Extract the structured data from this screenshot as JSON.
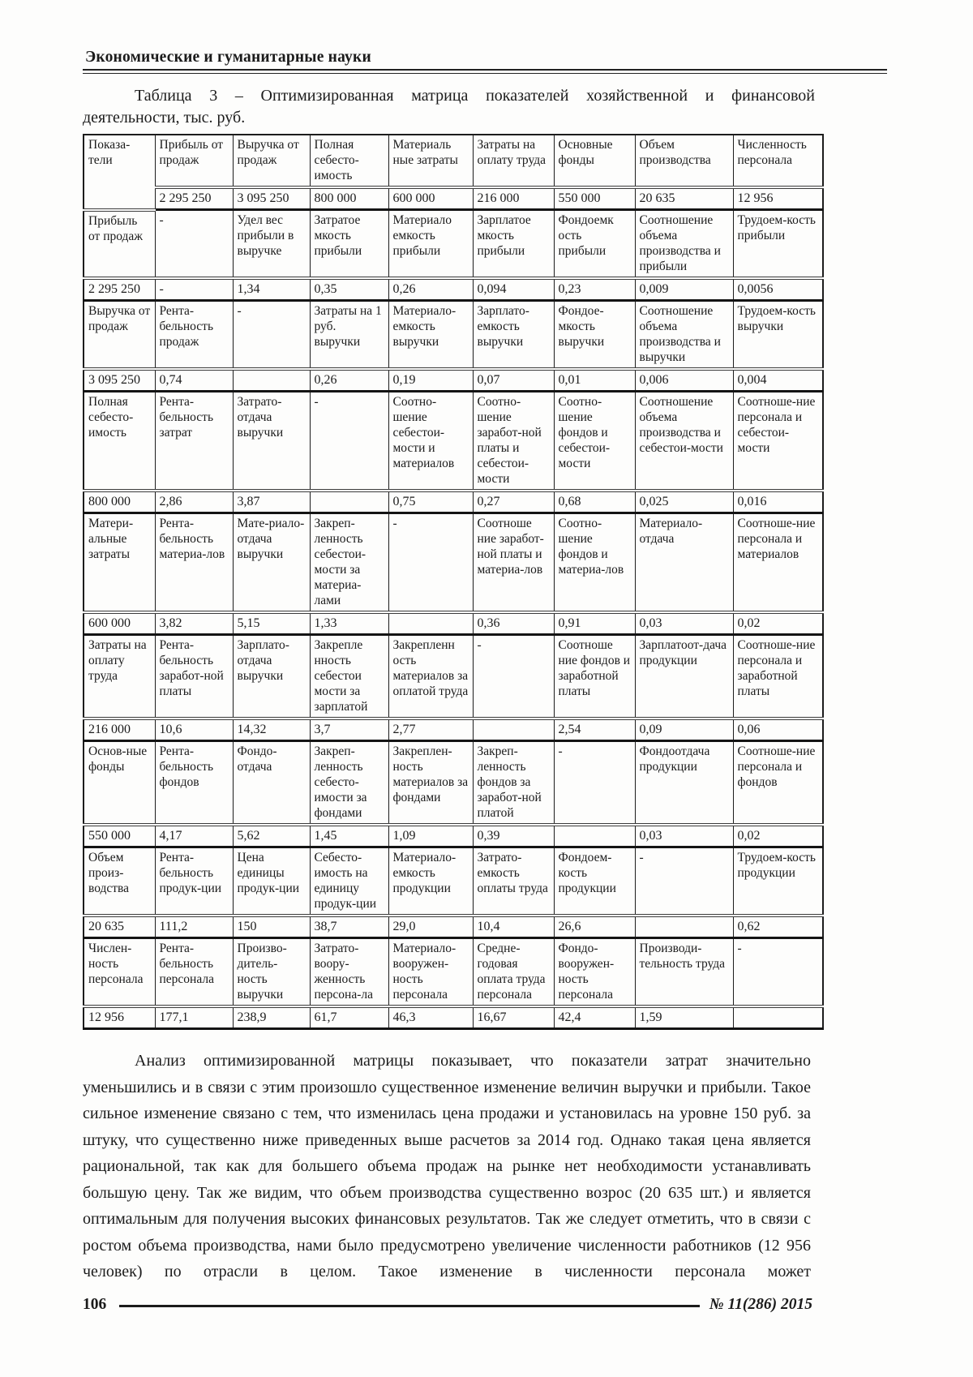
{
  "page": {
    "running_head": "Экономические и гуманитарные науки",
    "caption_line1": "Таблица 3 – Оптимизированная матрица показателей хозяйственной и финансовой",
    "caption_line2": "деятельности, тыс. руб.",
    "body_paragraph": "Анализ оптимизированной матрицы показывает, что показатели затрат значительно уменьшились и в связи с этим произошло существенное изменение величин выручки и прибыли. Такое сильное изменение связано с тем, что изменилась цена продажи и установилась на уровне 150 руб. за штуку, что существенно ниже приведенных выше расчетов за 2014 год. Однако такая цена является рациональной, так как для большего объема продаж на рынке нет необходимости устанавливать большую цену. Так же видим, что объем производства существенно возрос (20 635 шт.) и является оптимальным для получения высоких финансовых результатов. Так же следует отметить, что в связи с ростом объема производства, нами было предусмотрено увеличение численности работников (12 956 человек) по отрасли в целом. Такое изменение в численности персонала может",
    "footer": {
      "page_number": "106",
      "issue": "№ 11(286) 2015"
    }
  },
  "table": {
    "rows": [
      {
        "type": "header",
        "cells": [
          "Показа-тели",
          "Прибыль от продаж",
          "Выручка от продаж",
          "Полная себесто-имость",
          "Материаль ные затраты",
          "Затраты на оплату труда",
          "Основные фонды",
          "Объем производства",
          "Численность персонала"
        ]
      },
      {
        "type": "values",
        "cells": [
          "",
          "2 295 250",
          "3 095 250",
          "800 000",
          "600 000",
          "216 000",
          "550 000",
          "20 635",
          "12 956"
        ]
      },
      {
        "type": "labels",
        "cells": [
          "Прибыль от продаж",
          "-",
          "Удел вес прибыли в выручке",
          "Затратое мкость прибыли",
          "Материало емкость прибыли",
          "Зарплатое мкость прибыли",
          "Фондоемк ость прибыли",
          "Соотношение объема производства и прибыли",
          "Трудоем-кость прибыли"
        ]
      },
      {
        "type": "values",
        "cells": [
          "2 295 250",
          "-",
          "1,34",
          "0,35",
          "0,26",
          "0,094",
          "0,23",
          "0,009",
          "0,0056"
        ]
      },
      {
        "type": "labels",
        "cells": [
          "Выручка от продаж",
          "Рента-бельность продаж",
          "-",
          "Затраты на 1 руб. выручки",
          "Материало-емкость выручки",
          "Зарплато-емкость выручки",
          "Фондое-мкость выручки",
          "Соотношение объема производства и выручки",
          "Трудоем-кость выручки"
        ]
      },
      {
        "type": "values",
        "cells": [
          "3 095 250",
          "0,74",
          "",
          "0,26",
          "0,19",
          "0,07",
          "0,01",
          "0,006",
          "0,004"
        ]
      },
      {
        "type": "labels",
        "cells": [
          "Полная себесто-имость",
          "Рента-бельность затрат",
          "Затрато-отдача выручки",
          "-",
          "Соотно-шение себестои-мости и материалов",
          "Соотно-шение заработ-ной платы и себестои-мости",
          "Соотно-шение фондов и себестои-мости",
          "Соотношение объема производства и себестои-мости",
          "Соотноше-ние персонала и себестои-мости"
        ]
      },
      {
        "type": "values",
        "cells": [
          "800 000",
          "2,86",
          "3,87",
          "",
          "0,75",
          "0,27",
          "0,68",
          "0,025",
          "0,016"
        ]
      },
      {
        "type": "labels",
        "cells": [
          "Матери-альные затраты",
          "Рента-бельность материа-лов",
          "Мате-риало-отдача выручки",
          "Закреп-ленность себестои-мости за материа-лами",
          "-",
          "Соотноше ние заработ-ной платы и материа-лов",
          "Соотно-шение фондов и материа-лов",
          "Материало-отдача",
          "Соотноше-ние персонала и материалов"
        ]
      },
      {
        "type": "values",
        "cells": [
          "600 000",
          "3,82",
          "5,15",
          "1,33",
          "",
          "0,36",
          "0,91",
          "0,03",
          "0,02"
        ]
      },
      {
        "type": "labels",
        "cells": [
          "Затраты на оплату труда",
          "Рента-бельность заработ-ной платы",
          "Зарплато-отдача выручки",
          "Закрепле нность себестои мости за зарплатой",
          "Закрепленн ость материалов за оплатой труда",
          "-",
          "Соотноше ние фондов и заработной платы",
          "Зарплатоот-дача продукции",
          "Соотноше-ние персонала и заработной платы"
        ]
      },
      {
        "type": "values",
        "cells": [
          "216 000",
          "10,6",
          "14,32",
          "3,7",
          "2,77",
          "",
          "2,54",
          "0,09",
          "0,06"
        ]
      },
      {
        "type": "labels",
        "cells": [
          "Основ-ные фонды",
          "Рента-бельность фондов",
          "Фондо-отдача",
          "Закреп-ленность себесто-имости за фондами",
          "Закреплен-ность материалов за фондами",
          "Закреп-ленность фондов за заработ-ной платой",
          "-",
          "Фондоотдача продукции",
          "Соотноше-ние персонала и фондов"
        ]
      },
      {
        "type": "values",
        "cells": [
          "550 000",
          "4,17",
          "5,62",
          "1,45",
          "1,09",
          "0,39",
          "",
          "0,03",
          "0,02"
        ]
      },
      {
        "type": "labels",
        "cells": [
          "Объем произ-водства",
          "Рента-бельность продук-ции",
          "Цена единицы продук-ции",
          "Себесто-имость на единицу продук-ции",
          "Материало-емкость продукции",
          "Затрато-емкость оплаты труда",
          "Фондоем-кость продукции",
          "-",
          "Трудоем-кость продукции"
        ]
      },
      {
        "type": "values",
        "cells": [
          "20 635",
          "111,2",
          "150",
          "38,7",
          "29,0",
          "10,4",
          "26,6",
          "",
          "0,62"
        ]
      },
      {
        "type": "labels",
        "cells": [
          "Числен-ность персонала",
          "Рента-бельность персонала",
          "Произво-дитель-ность выручки",
          "Затрато-воору-женность персона-ла",
          "Материало-вооружен-ность персонала",
          "Средне-годовая оплата труда персонала",
          "Фондо-вооружен-ность персонала",
          "Производи-тельность труда",
          "-"
        ]
      },
      {
        "type": "values",
        "cells": [
          "12 956",
          "177,1",
          "238,9",
          "61,7",
          "46,3",
          "16,67",
          "42,4",
          "1,59",
          ""
        ]
      }
    ]
  }
}
